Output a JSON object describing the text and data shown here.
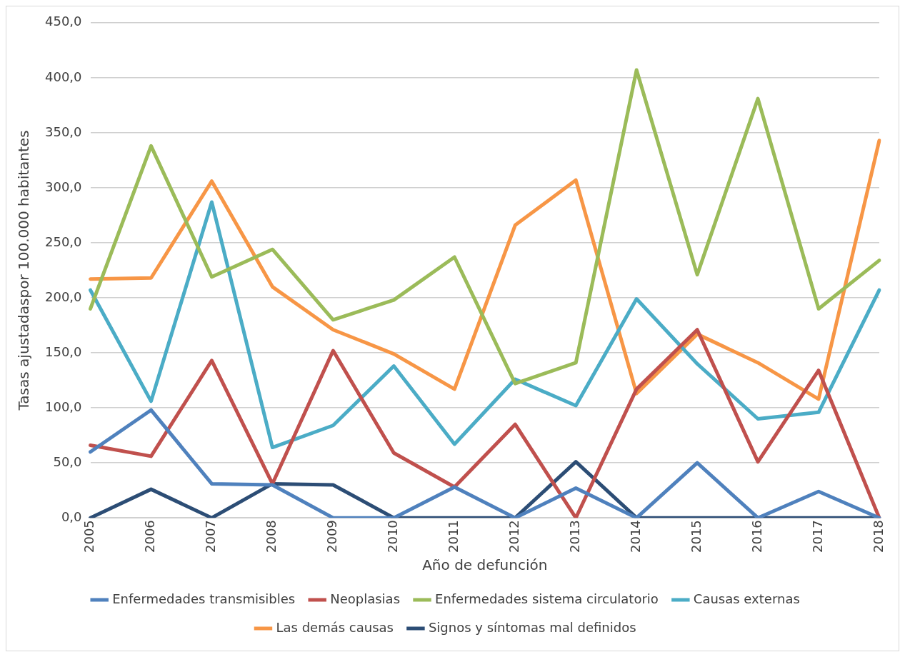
{
  "chart_data": {
    "type": "line",
    "xlabel": "Año de defunción",
    "ylabel": "Tasas ajustadaspor 100.000 habitantes",
    "categories": [
      "2005",
      "2006",
      "2007",
      "2008",
      "2009",
      "2010",
      "2011",
      "2012",
      "2013",
      "2014",
      "2015",
      "2016",
      "2017",
      "2018"
    ],
    "series": [
      {
        "name": "Enfermedades transmisibles",
        "color": "#4f81bd",
        "values": [
          60,
          98,
          31,
          30,
          0,
          0,
          28,
          0,
          27,
          0,
          50,
          0,
          24,
          0
        ]
      },
      {
        "name": "Neoplasias",
        "color": "#c0504d",
        "values": [
          66,
          56,
          143,
          31,
          152,
          59,
          28,
          85,
          0,
          117,
          171,
          51,
          134,
          0
        ]
      },
      {
        "name": "Enfermedades sistema circulatorio",
        "color": "#9bbb59",
        "values": [
          190,
          338,
          219,
          244,
          180,
          198,
          237,
          122,
          141,
          407,
          221,
          381,
          190,
          234
        ]
      },
      {
        "name": "Causas externas",
        "color": "#4bacc6",
        "values": [
          207,
          106,
          287,
          64,
          84,
          138,
          67,
          126,
          102,
          199,
          140,
          90,
          96,
          207
        ]
      },
      {
        "name": "Las demás causas",
        "color": "#f79646",
        "values": [
          217,
          218,
          306,
          210,
          171,
          149,
          117,
          266,
          307,
          113,
          167,
          141,
          108,
          343
        ]
      },
      {
        "name": "Signos y síntomas mal definidos",
        "color": "#2c4d75",
        "values": [
          0,
          26,
          0,
          31,
          30,
          0,
          0,
          0,
          51,
          0,
          0,
          0,
          0,
          0
        ]
      }
    ],
    "ylim": [
      0,
      450
    ],
    "yticks": [
      {
        "value": 0,
        "label": "0,0"
      },
      {
        "value": 50,
        "label": "50,0"
      },
      {
        "value": 100,
        "label": "100,0"
      },
      {
        "value": 150,
        "label": "150,0"
      },
      {
        "value": 200,
        "label": "200,0"
      },
      {
        "value": 250,
        "label": "250,0"
      },
      {
        "value": 300,
        "label": "300,0"
      },
      {
        "value": 350,
        "label": "350,0"
      },
      {
        "value": 400,
        "label": "400,0"
      },
      {
        "value": 450,
        "label": "450,0"
      }
    ],
    "grid": "y",
    "legend": "bottom",
    "marker": "none",
    "line_style": "solid"
  }
}
